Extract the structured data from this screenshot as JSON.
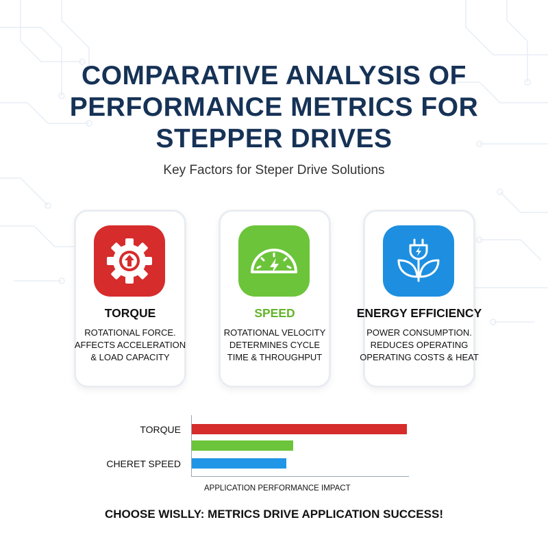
{
  "header": {
    "title_lines": [
      "COMPARATIVE ANALYSIS OF",
      "PERFORMANCE METRICS FOR",
      "STEPPER DRIVES"
    ],
    "subtitle": "Key Factors for Steper Drive Solutions"
  },
  "cards": [
    {
      "title": "TORQUE",
      "desc": [
        "ROTATIONAL FORCE.",
        "AFFECTS ACCELERATION",
        "& LOAD CAPACITY"
      ],
      "icon": "gear-arrow-icon",
      "color": "#d62c2c",
      "title_color": "#111111"
    },
    {
      "title": "SPEED",
      "desc": [
        "ROTATIONAL VELOCITY",
        "DETERMINES CYCLE",
        "TIME & THROUGHPUT"
      ],
      "icon": "speedometer-icon",
      "color": "#6cc43a",
      "title_color": "#63b52a"
    },
    {
      "title": "ENERGY EFFICIENCY",
      "desc": [
        "POWER CONSUMPTION.",
        "REDUCES OPERATING",
        "OPERATING COSTS & HEAT"
      ],
      "icon": "plug-leaf-icon",
      "color": "#1e8fe0",
      "title_color": "#111111"
    }
  ],
  "chart_data": {
    "type": "bar",
    "categories": [
      "TORQUE",
      "",
      "CHERET SPEED"
    ],
    "values": [
      1.0,
      0.47,
      0.44
    ],
    "colors": [
      "#d62c2c",
      "#6cc43a",
      "#2196e6"
    ],
    "xlabel": "APPLICATION PERFORMANCE IMPACT",
    "xlim": [
      0,
      1
    ]
  },
  "footer": "CHOOSE WISLLY: METRICS DRIVE APPLICATION SUCCESS!"
}
